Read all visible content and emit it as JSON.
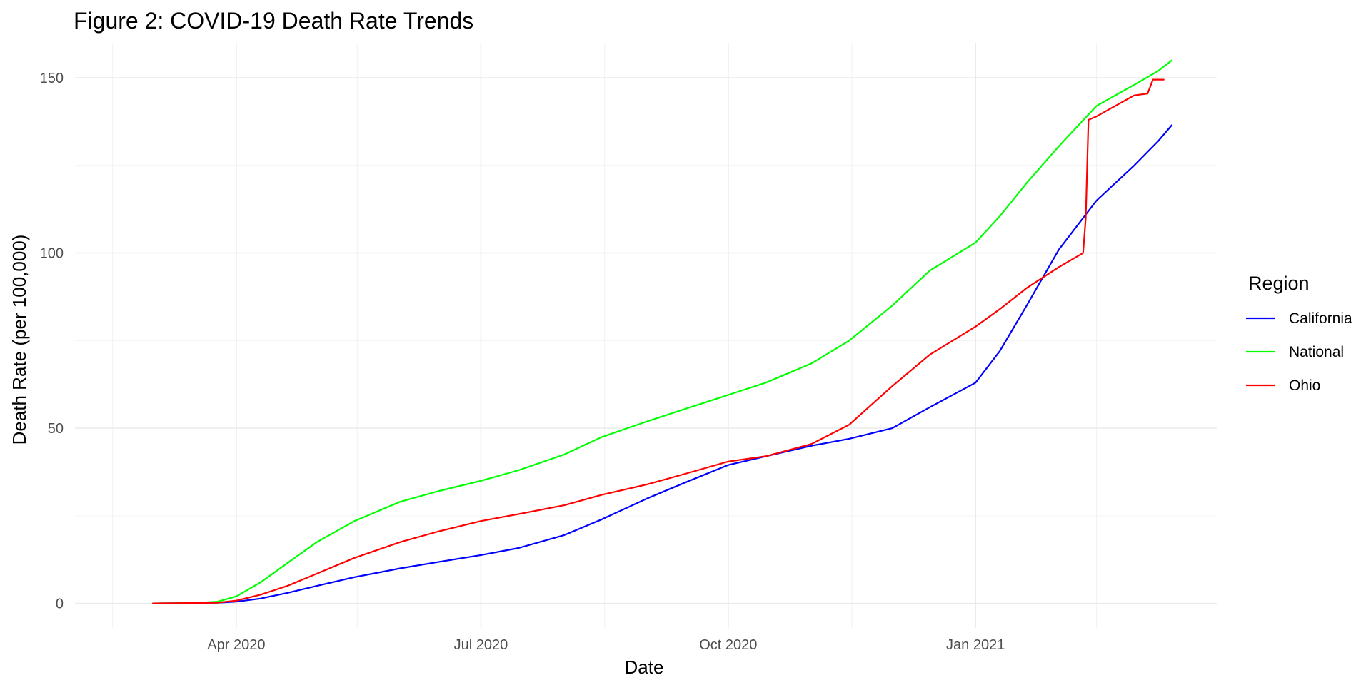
{
  "chart_data": {
    "type": "line",
    "title": "Figure 2: COVID-19 Death Rate Trends",
    "xlabel": "Date",
    "ylabel": "Death Rate (per 100,000)",
    "xlim": [
      "2020-02-01",
      "2021-04-01"
    ],
    "ylim": [
      -7,
      160
    ],
    "x_ticks": [
      {
        "date": "2020-04-01",
        "label": "Apr 2020"
      },
      {
        "date": "2020-07-01",
        "label": "Jul 2020"
      },
      {
        "date": "2020-10-01",
        "label": "Oct 2020"
      },
      {
        "date": "2021-01-01",
        "label": "Jan 2021"
      }
    ],
    "x_minor_ticks": [
      "2020-02-15",
      "2020-05-16",
      "2020-08-16",
      "2020-11-16",
      "2021-02-15"
    ],
    "y_ticks": [
      0,
      50,
      100,
      150
    ],
    "y_minor_ticks": [
      25,
      75,
      125
    ],
    "grid": true,
    "legend": {
      "title": "Region",
      "position": "right"
    },
    "series": [
      {
        "name": "California",
        "color": "#0000ff",
        "points": [
          [
            "2020-03-01",
            0
          ],
          [
            "2020-03-15",
            0.1
          ],
          [
            "2020-03-25",
            0.2
          ],
          [
            "2020-04-01",
            0.5
          ],
          [
            "2020-04-10",
            1.4
          ],
          [
            "2020-04-20",
            3
          ],
          [
            "2020-05-01",
            5
          ],
          [
            "2020-05-15",
            7.5
          ],
          [
            "2020-06-01",
            10
          ],
          [
            "2020-06-15",
            11.8
          ],
          [
            "2020-07-01",
            13.8
          ],
          [
            "2020-07-15",
            15.8
          ],
          [
            "2020-08-01",
            19.5
          ],
          [
            "2020-08-15",
            24
          ],
          [
            "2020-09-01",
            30
          ],
          [
            "2020-09-15",
            34.5
          ],
          [
            "2020-10-01",
            39.5
          ],
          [
            "2020-10-15",
            42
          ],
          [
            "2020-11-01",
            45
          ],
          [
            "2020-11-15",
            47
          ],
          [
            "2020-12-01",
            50
          ],
          [
            "2020-12-15",
            56
          ],
          [
            "2021-01-01",
            63
          ],
          [
            "2021-01-10",
            72
          ],
          [
            "2021-01-20",
            85
          ],
          [
            "2021-02-01",
            101
          ],
          [
            "2021-02-15",
            115
          ],
          [
            "2021-03-01",
            125
          ],
          [
            "2021-03-10",
            132
          ],
          [
            "2021-03-15",
            136.5
          ]
        ]
      },
      {
        "name": "National",
        "color": "#00ff00",
        "points": [
          [
            "2020-03-01",
            0
          ],
          [
            "2020-03-15",
            0.1
          ],
          [
            "2020-03-25",
            0.5
          ],
          [
            "2020-04-01",
            2
          ],
          [
            "2020-04-10",
            6
          ],
          [
            "2020-04-20",
            11.5
          ],
          [
            "2020-05-01",
            17.5
          ],
          [
            "2020-05-15",
            23.5
          ],
          [
            "2020-06-01",
            29
          ],
          [
            "2020-06-15",
            32
          ],
          [
            "2020-07-01",
            35
          ],
          [
            "2020-07-15",
            38
          ],
          [
            "2020-08-01",
            42.5
          ],
          [
            "2020-08-15",
            47.5
          ],
          [
            "2020-09-01",
            52
          ],
          [
            "2020-09-15",
            55.5
          ],
          [
            "2020-10-01",
            59.5
          ],
          [
            "2020-10-15",
            63
          ],
          [
            "2020-11-01",
            68.5
          ],
          [
            "2020-11-15",
            75
          ],
          [
            "2020-12-01",
            85
          ],
          [
            "2020-12-15",
            95
          ],
          [
            "2021-01-01",
            103
          ],
          [
            "2021-01-10",
            110.5
          ],
          [
            "2021-01-20",
            120
          ],
          [
            "2021-02-01",
            130.5
          ],
          [
            "2021-02-15",
            142
          ],
          [
            "2021-03-01",
            148
          ],
          [
            "2021-03-10",
            152
          ],
          [
            "2021-03-15",
            155
          ]
        ]
      },
      {
        "name": "Ohio",
        "color": "#ff0000",
        "points": [
          [
            "2020-03-01",
            0
          ],
          [
            "2020-03-15",
            0.1
          ],
          [
            "2020-03-25",
            0.2
          ],
          [
            "2020-04-01",
            0.8
          ],
          [
            "2020-04-10",
            2.5
          ],
          [
            "2020-04-20",
            5
          ],
          [
            "2020-05-01",
            8.5
          ],
          [
            "2020-05-15",
            13
          ],
          [
            "2020-06-01",
            17.5
          ],
          [
            "2020-06-15",
            20.5
          ],
          [
            "2020-07-01",
            23.5
          ],
          [
            "2020-07-15",
            25.5
          ],
          [
            "2020-08-01",
            28
          ],
          [
            "2020-08-15",
            31
          ],
          [
            "2020-09-01",
            34
          ],
          [
            "2020-09-15",
            37
          ],
          [
            "2020-10-01",
            40.5
          ],
          [
            "2020-10-15",
            42
          ],
          [
            "2020-11-01",
            45.5
          ],
          [
            "2020-11-15",
            51
          ],
          [
            "2020-12-01",
            62
          ],
          [
            "2020-12-15",
            71
          ],
          [
            "2021-01-01",
            79
          ],
          [
            "2021-01-10",
            84
          ],
          [
            "2021-01-20",
            90
          ],
          [
            "2021-02-01",
            96
          ],
          [
            "2021-02-10",
            100
          ],
          [
            "2021-02-11",
            110
          ],
          [
            "2021-02-12",
            138
          ],
          [
            "2021-02-15",
            139
          ],
          [
            "2021-03-01",
            145
          ],
          [
            "2021-03-06",
            145.5
          ],
          [
            "2021-03-08",
            149.5
          ],
          [
            "2021-03-12",
            149.5
          ]
        ]
      }
    ]
  }
}
